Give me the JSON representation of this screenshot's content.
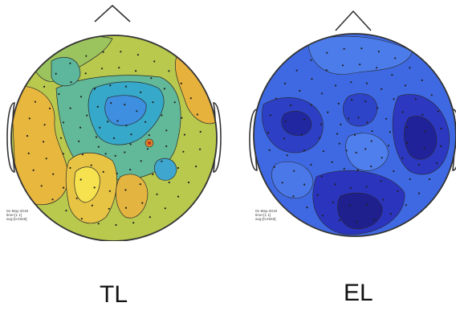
{
  "maps": [
    {
      "caption": "TL",
      "meta": [
        "01-May-2019",
        "time-[1 1]",
        "avg-[0.0346]"
      ],
      "colormap": "parula-like (green to yellow/orange)"
    },
    {
      "caption": "EL",
      "meta": [
        "01-May-2019",
        "time-[1 1]",
        "avg-[0.0346]"
      ],
      "colormap": "parula-like (deep blue to light blue)"
    }
  ],
  "colors": {
    "outline": "#333333",
    "contour": "#2a2a2a",
    "yellow": "#f6d64a",
    "orange": "#eab13b",
    "green": "#5fb998",
    "teal": "#35a8c9",
    "blue_mid": "#3f6fe0",
    "blue_deep": "#2a32b8",
    "blue_dark": "#1e1e8c"
  }
}
